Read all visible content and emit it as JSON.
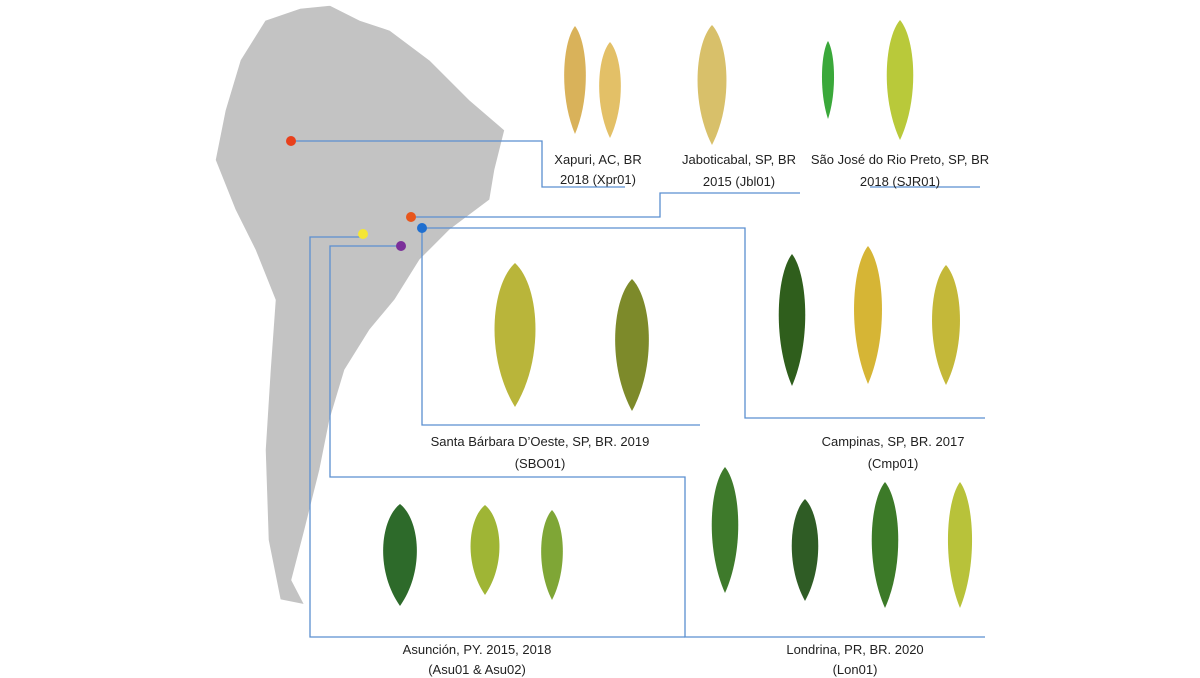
{
  "locations": [
    {
      "lines": [
        "Xapuri, AC, BR",
        "2018 (Xpr01)"
      ]
    },
    {
      "lines": [
        "Jaboticabal, SP, BR",
        "2015 (Jbl01)"
      ]
    },
    {
      "lines": [
        "São José do Rio Preto, SP, BR",
        "2018 (SJR01)"
      ]
    },
    {
      "lines": [
        "Santa Bárbara D’Oeste, SP, BR. 2019",
        "(SBO01)"
      ]
    },
    {
      "lines": [
        "Campinas, SP, BR. 2017",
        "(Cmp01)"
      ]
    },
    {
      "lines": [
        "Asunción, PY. 2015, 2018",
        "(Asu01 & Asu02)"
      ]
    },
    {
      "lines": [
        "Londrina, PR, BR. 2020",
        "(Lon01)"
      ]
    }
  ]
}
